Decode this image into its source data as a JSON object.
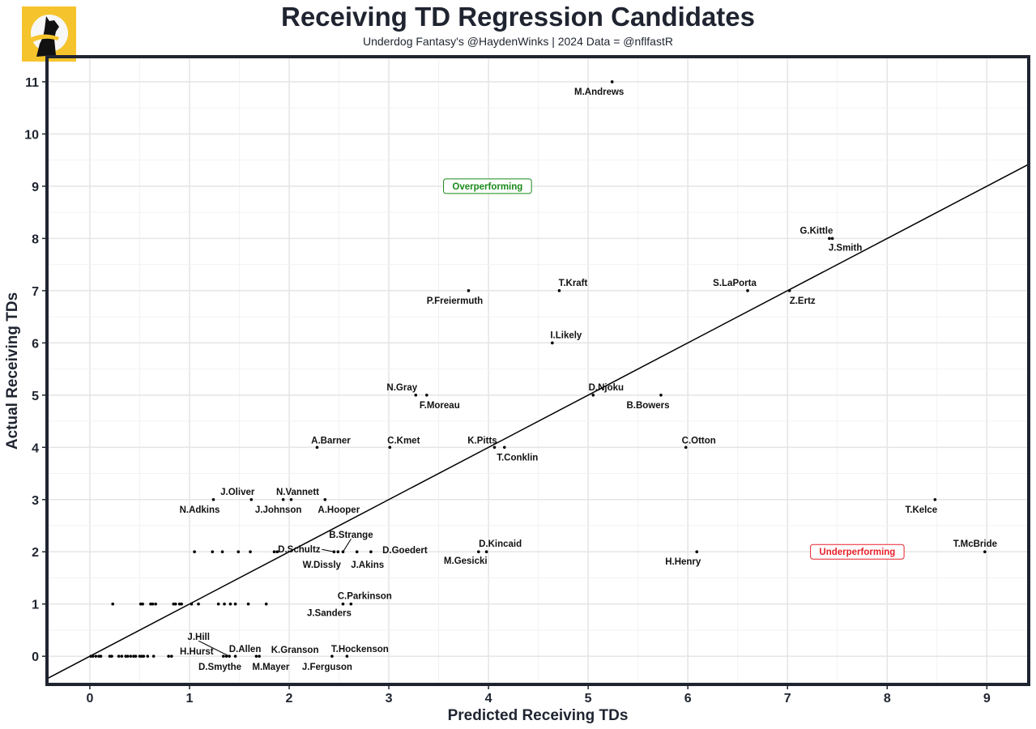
{
  "chart_data": {
    "type": "scatter",
    "title": "Receiving TD Regression Candidates",
    "subtitle": "Underdog Fantasy's @HaydenWinks | 2024 Data = @nflfastR",
    "xlabel": "Predicted Receiving TDs",
    "ylabel": "Actual Receiving TDs",
    "xlim": [
      -0.43,
      9.42
    ],
    "ylim": [
      -0.54,
      11.48
    ],
    "x_ticks": [
      0,
      1,
      2,
      3,
      4,
      5,
      6,
      7,
      8,
      9
    ],
    "y_ticks": [
      0,
      1,
      2,
      3,
      4,
      5,
      6,
      7,
      8,
      9,
      10,
      11
    ],
    "grid": true,
    "reference_line": {
      "slope": 1,
      "intercept": 0
    },
    "annotations": [
      {
        "text": "Overperforming",
        "x": 3.99,
        "y": 9,
        "color": "#1a8a1a"
      },
      {
        "text": "Underperforming",
        "x": 7.7,
        "y": 2,
        "color": "#e8212a"
      }
    ],
    "labeled_points": [
      {
        "name": "M.Andrews",
        "x": 5.24,
        "y": 11
      },
      {
        "name": "G.Kittle",
        "x": 7.42,
        "y": 8
      },
      {
        "name": "J.Smith",
        "x": 7.45,
        "y": 8
      },
      {
        "name": "S.LaPorta",
        "x": 6.6,
        "y": 7
      },
      {
        "name": "Z.Ertz",
        "x": 7.02,
        "y": 7
      },
      {
        "name": "T.Kraft",
        "x": 4.71,
        "y": 7
      },
      {
        "name": "P.Freiermuth",
        "x": 3.8,
        "y": 7
      },
      {
        "name": "I.Likely",
        "x": 4.64,
        "y": 6
      },
      {
        "name": "N.Gray",
        "x": 3.27,
        "y": 5
      },
      {
        "name": "F.Moreau",
        "x": 3.38,
        "y": 5
      },
      {
        "name": "D.Njoku",
        "x": 5.05,
        "y": 5
      },
      {
        "name": "B.Bowers",
        "x": 5.73,
        "y": 5
      },
      {
        "name": "A.Barner",
        "x": 2.28,
        "y": 4
      },
      {
        "name": "C.Kmet",
        "x": 3.01,
        "y": 4
      },
      {
        "name": "K.Pitts",
        "x": 4.06,
        "y": 4
      },
      {
        "name": "T.Conklin",
        "x": 4.16,
        "y": 4
      },
      {
        "name": "C.Otton",
        "x": 5.98,
        "y": 4
      },
      {
        "name": "N.Adkins",
        "x": 1.24,
        "y": 3
      },
      {
        "name": "J.Oliver",
        "x": 1.62,
        "y": 3
      },
      {
        "name": "J.Johnson",
        "x": 1.94,
        "y": 3
      },
      {
        "name": "N.Vannett",
        "x": 2.02,
        "y": 3
      },
      {
        "name": "A.Hooper",
        "x": 2.36,
        "y": 3
      },
      {
        "name": "T.Kelce",
        "x": 8.48,
        "y": 3
      },
      {
        "name": "D.Schultz",
        "x": 2.45,
        "y": 2
      },
      {
        "name": "W.Dissly",
        "x": 2.49,
        "y": 2
      },
      {
        "name": "B.Strange",
        "x": 2.54,
        "y": 2
      },
      {
        "name": "J.Akins",
        "x": 2.68,
        "y": 2
      },
      {
        "name": "D.Goedert",
        "x": 2.82,
        "y": 2
      },
      {
        "name": "M.Gesicki",
        "x": 3.9,
        "y": 2
      },
      {
        "name": "D.Kincaid",
        "x": 3.98,
        "y": 2
      },
      {
        "name": "H.Henry",
        "x": 6.09,
        "y": 2
      },
      {
        "name": "T.McBride",
        "x": 8.98,
        "y": 2
      },
      {
        "name": "C.Parkinson",
        "x": 2.62,
        "y": 1
      },
      {
        "name": "J.Sanders",
        "x": 2.54,
        "y": 1
      },
      {
        "name": "J.Hill",
        "x": 1.4,
        "y": 0
      },
      {
        "name": "H.Hurst",
        "x": 1.34,
        "y": 0
      },
      {
        "name": "D.Smythe",
        "x": 1.37,
        "y": 0
      },
      {
        "name": "D.Allen",
        "x": 1.46,
        "y": 0
      },
      {
        "name": "M.Mayer",
        "x": 1.67,
        "y": 0
      },
      {
        "name": "K.Granson",
        "x": 1.7,
        "y": 0
      },
      {
        "name": "J.Ferguson",
        "x": 2.43,
        "y": 0
      },
      {
        "name": "T.Hockenson",
        "x": 2.58,
        "y": 0
      }
    ],
    "unlabeled_points": [
      {
        "x": 1.05,
        "y": 2
      },
      {
        "x": 1.23,
        "y": 2
      },
      {
        "x": 1.33,
        "y": 2
      },
      {
        "x": 1.49,
        "y": 2
      },
      {
        "x": 1.61,
        "y": 2
      },
      {
        "x": 1.85,
        "y": 2
      },
      {
        "x": 1.88,
        "y": 2
      },
      {
        "x": 0.23,
        "y": 1
      },
      {
        "x": 0.51,
        "y": 1
      },
      {
        "x": 0.53,
        "y": 1
      },
      {
        "x": 0.61,
        "y": 1
      },
      {
        "x": 0.63,
        "y": 1
      },
      {
        "x": 0.66,
        "y": 1
      },
      {
        "x": 0.84,
        "y": 1
      },
      {
        "x": 0.86,
        "y": 1
      },
      {
        "x": 0.9,
        "y": 1
      },
      {
        "x": 0.92,
        "y": 1
      },
      {
        "x": 1.02,
        "y": 1
      },
      {
        "x": 1.09,
        "y": 1
      },
      {
        "x": 1.29,
        "y": 1
      },
      {
        "x": 1.35,
        "y": 1
      },
      {
        "x": 1.41,
        "y": 1
      },
      {
        "x": 1.46,
        "y": 1
      },
      {
        "x": 1.59,
        "y": 1
      },
      {
        "x": 1.77,
        "y": 1
      },
      {
        "x": 0.01,
        "y": 0
      },
      {
        "x": 0.03,
        "y": 0
      },
      {
        "x": 0.06,
        "y": 0
      },
      {
        "x": 0.09,
        "y": 0
      },
      {
        "x": 0.11,
        "y": 0
      },
      {
        "x": 0.2,
        "y": 0
      },
      {
        "x": 0.22,
        "y": 0
      },
      {
        "x": 0.29,
        "y": 0
      },
      {
        "x": 0.32,
        "y": 0
      },
      {
        "x": 0.36,
        "y": 0
      },
      {
        "x": 0.38,
        "y": 0
      },
      {
        "x": 0.41,
        "y": 0
      },
      {
        "x": 0.44,
        "y": 0
      },
      {
        "x": 0.46,
        "y": 0
      },
      {
        "x": 0.5,
        "y": 0
      },
      {
        "x": 0.52,
        "y": 0
      },
      {
        "x": 0.54,
        "y": 0
      },
      {
        "x": 0.58,
        "y": 0
      },
      {
        "x": 0.64,
        "y": 0
      },
      {
        "x": 0.79,
        "y": 0
      },
      {
        "x": 0.82,
        "y": 0
      }
    ],
    "colors": {
      "frame": "#1f2430",
      "logo_bg": "#f5c42c",
      "points": "#000000",
      "line": "#000000"
    }
  }
}
